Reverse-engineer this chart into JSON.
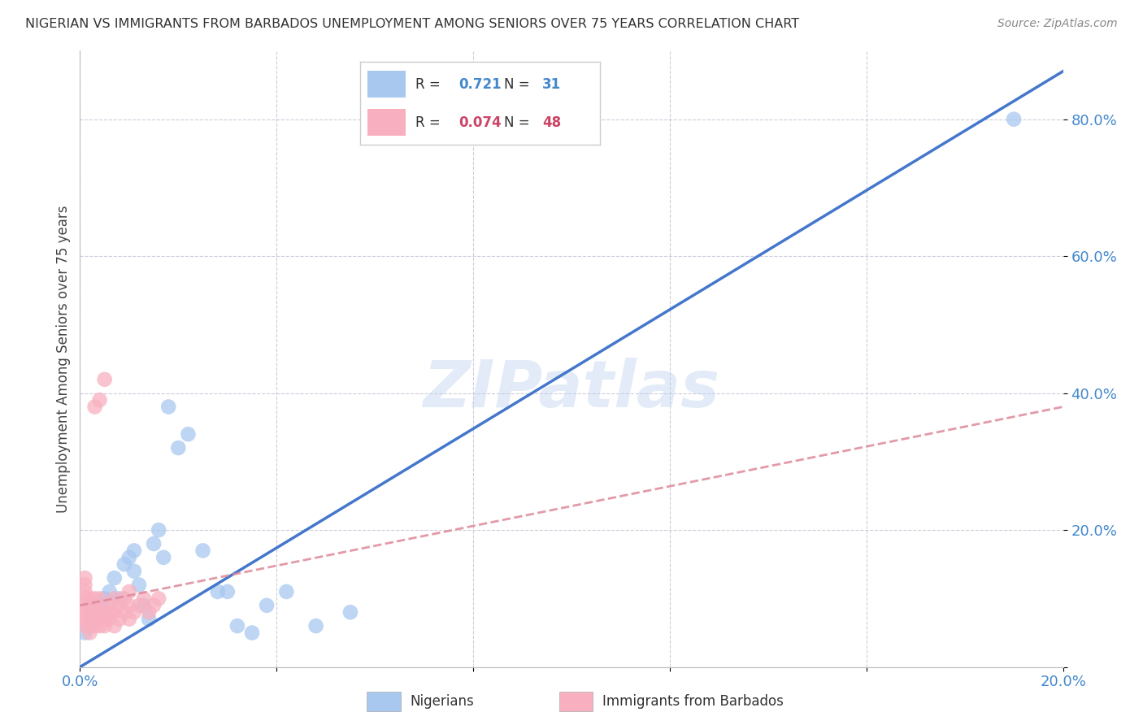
{
  "title": "NIGERIAN VS IMMIGRANTS FROM BARBADOS UNEMPLOYMENT AMONG SENIORS OVER 75 YEARS CORRELATION CHART",
  "source": "Source: ZipAtlas.com",
  "ylabel": "Unemployment Among Seniors over 75 years",
  "xlim": [
    0.0,
    0.2
  ],
  "ylim": [
    0.0,
    0.9
  ],
  "ytick_values": [
    0.0,
    0.2,
    0.4,
    0.6,
    0.8
  ],
  "ytick_labels": [
    "",
    "20.0%",
    "40.0%",
    "60.0%",
    "80.0%"
  ],
  "xtick_values": [
    0.0,
    0.04,
    0.08,
    0.12,
    0.16,
    0.2
  ],
  "xtick_labels": [
    "0.0%",
    "",
    "",
    "",
    "",
    "20.0%"
  ],
  "watermark": "ZIPatlas",
  "legend_R_blue": "0.721",
  "legend_N_blue": "31",
  "legend_R_pink": "0.074",
  "legend_N_pink": "48",
  "blue_color": "#a8c8f0",
  "pink_color": "#f8b0c0",
  "line_blue": "#4477cc",
  "line_pink": "#dd8899",
  "nigerian_x": [
    0.001,
    0.002,
    0.003,
    0.004,
    0.005,
    0.006,
    0.007,
    0.008,
    0.009,
    0.01,
    0.011,
    0.011,
    0.012,
    0.013,
    0.014,
    0.015,
    0.016,
    0.017,
    0.018,
    0.02,
    0.022,
    0.025,
    0.028,
    0.03,
    0.032,
    0.035,
    0.038,
    0.042,
    0.048,
    0.055,
    0.19
  ],
  "nigerian_y": [
    0.05,
    0.06,
    0.08,
    0.09,
    0.1,
    0.11,
    0.13,
    0.1,
    0.15,
    0.16,
    0.17,
    0.14,
    0.12,
    0.09,
    0.07,
    0.18,
    0.2,
    0.16,
    0.38,
    0.32,
    0.34,
    0.17,
    0.11,
    0.11,
    0.06,
    0.05,
    0.09,
    0.11,
    0.06,
    0.08,
    0.8
  ],
  "barbados_x": [
    0.001,
    0.001,
    0.001,
    0.001,
    0.001,
    0.001,
    0.001,
    0.001,
    0.002,
    0.002,
    0.002,
    0.002,
    0.002,
    0.002,
    0.003,
    0.003,
    0.003,
    0.003,
    0.003,
    0.004,
    0.004,
    0.004,
    0.004,
    0.005,
    0.005,
    0.005,
    0.006,
    0.006,
    0.006,
    0.007,
    0.007,
    0.007,
    0.008,
    0.008,
    0.009,
    0.009,
    0.01,
    0.01,
    0.01,
    0.011,
    0.012,
    0.013,
    0.014,
    0.015,
    0.016,
    0.003,
    0.004,
    0.005
  ],
  "barbados_y": [
    0.06,
    0.07,
    0.08,
    0.09,
    0.1,
    0.11,
    0.12,
    0.13,
    0.05,
    0.06,
    0.07,
    0.08,
    0.09,
    0.1,
    0.06,
    0.07,
    0.08,
    0.09,
    0.1,
    0.06,
    0.07,
    0.08,
    0.1,
    0.06,
    0.07,
    0.08,
    0.07,
    0.08,
    0.09,
    0.06,
    0.08,
    0.1,
    0.07,
    0.09,
    0.08,
    0.1,
    0.07,
    0.09,
    0.11,
    0.08,
    0.09,
    0.1,
    0.08,
    0.09,
    0.1,
    0.38,
    0.39,
    0.42
  ],
  "blue_line_x0": 0.0,
  "blue_line_y0": 0.0,
  "blue_line_x1": 0.2,
  "blue_line_y1": 0.87,
  "pink_line_x0": 0.0,
  "pink_line_y0": 0.09,
  "pink_line_x1": 0.2,
  "pink_line_y1": 0.38
}
